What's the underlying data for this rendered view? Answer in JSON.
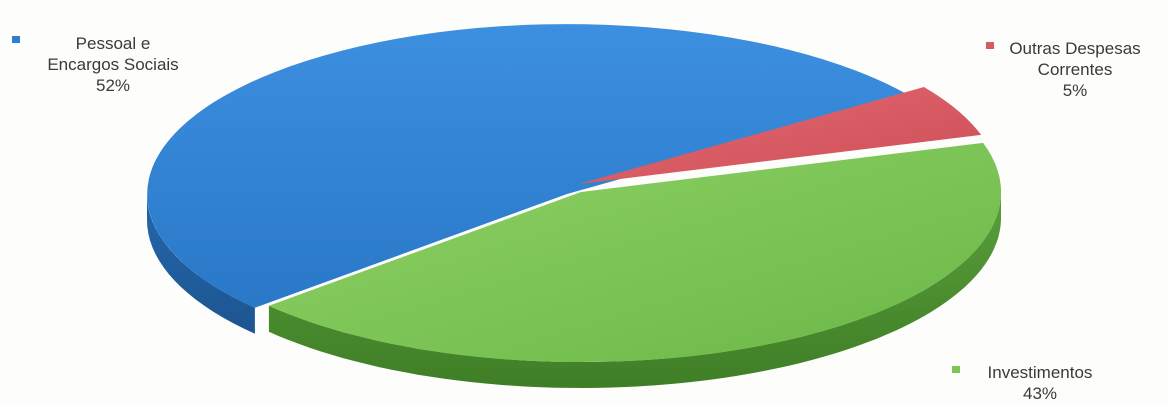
{
  "chart_data": {
    "type": "pie",
    "style": "3d",
    "slices": [
      {
        "label_lines": [
          "Pessoal e",
          "Encargos Sociais"
        ],
        "pct": "52%",
        "value": 52,
        "color": "#2f7fd0"
      },
      {
        "label_lines": [
          "Outras Despesas",
          "Correntes"
        ],
        "pct": "5%",
        "value": 5,
        "color": "#d85a63"
      },
      {
        "label_lines": [
          "Investimentos"
        ],
        "pct": "43%",
        "value": 43,
        "color": "#7cc556"
      }
    ],
    "legend": "labels next to slices"
  }
}
